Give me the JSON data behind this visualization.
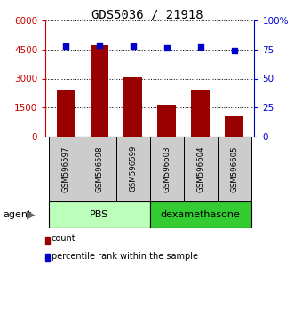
{
  "title": "GDS5036 / 21918",
  "samples": [
    "GSM596597",
    "GSM596598",
    "GSM596599",
    "GSM596603",
    "GSM596604",
    "GSM596605"
  ],
  "counts": [
    2400,
    4700,
    3050,
    1650,
    2450,
    1050
  ],
  "percentile_ranks": [
    78,
    79,
    78,
    76,
    77,
    74
  ],
  "ylim_left": [
    0,
    6000
  ],
  "ylim_right": [
    0,
    100
  ],
  "yticks_left": [
    0,
    1500,
    3000,
    4500,
    6000
  ],
  "yticks_right": [
    0,
    25,
    50,
    75,
    100
  ],
  "ytick_labels_left": [
    "0",
    "1500",
    "3000",
    "4500",
    "6000"
  ],
  "ytick_labels_right": [
    "0",
    "25",
    "50",
    "75",
    "100%"
  ],
  "bar_color": "#990000",
  "dot_color": "#0000cc",
  "groups": [
    {
      "label": "PBS",
      "samples": [
        0,
        1,
        2
      ],
      "color": "#bbffbb"
    },
    {
      "label": "dexamethasone",
      "samples": [
        3,
        4,
        5
      ],
      "color": "#33cc33"
    }
  ],
  "agent_label": "agent",
  "legend_items": [
    {
      "label": "count",
      "color": "#990000"
    },
    {
      "label": "percentile rank within the sample",
      "color": "#0000cc"
    }
  ],
  "left_tick_color": "#cc0000",
  "right_tick_color": "#0000cc",
  "grid_color": "#000000",
  "background_color": "#ffffff",
  "sample_box_color": "#cccccc"
}
